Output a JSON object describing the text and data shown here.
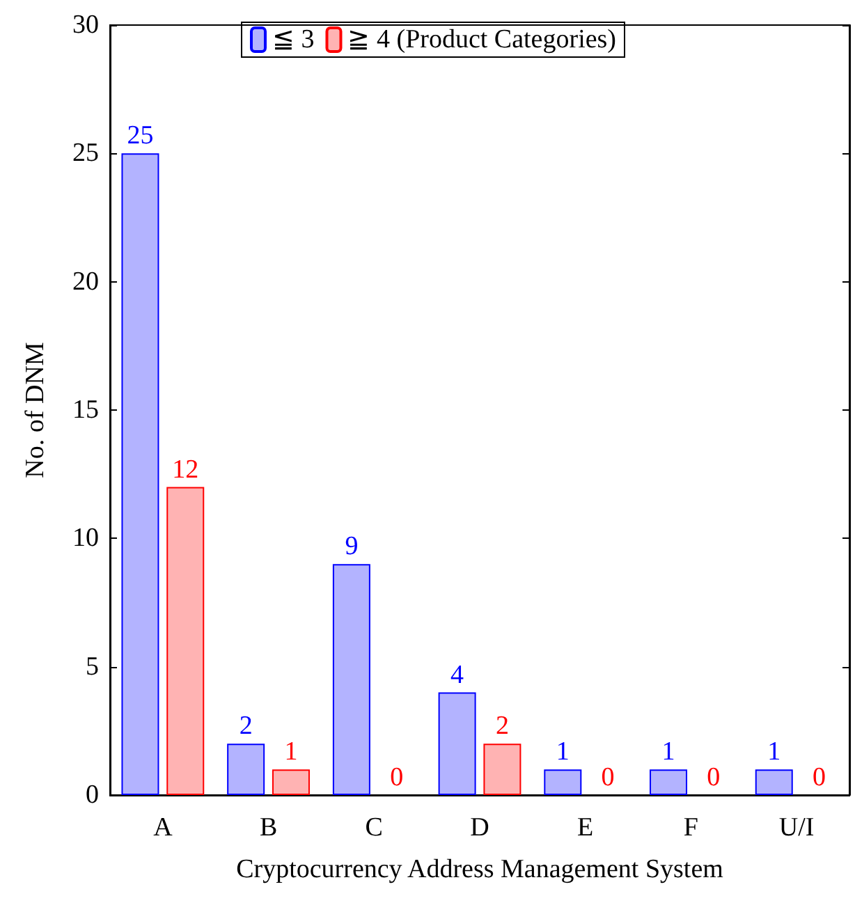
{
  "chart_data": {
    "type": "bar",
    "xlabel": "Cryptocurrency Address Management System",
    "ylabel": "No. of DNM",
    "categories": [
      "A",
      "B",
      "C",
      "D",
      "E",
      "F",
      "U/I"
    ],
    "series": [
      {
        "name": "≦ 3",
        "color": "#b3b3ff",
        "values": [
          25,
          2,
          9,
          4,
          1,
          1,
          1
        ]
      },
      {
        "name": "≧ 4 (Product Categories)",
        "color": "#ffb3b3",
        "values": [
          12,
          1,
          0,
          2,
          0,
          0,
          0
        ]
      }
    ],
    "ylim": [
      0,
      30
    ],
    "yticks": [
      0,
      5,
      10,
      15,
      20,
      25,
      30
    ],
    "grid": false,
    "legend": "top",
    "data_labels": true
  }
}
